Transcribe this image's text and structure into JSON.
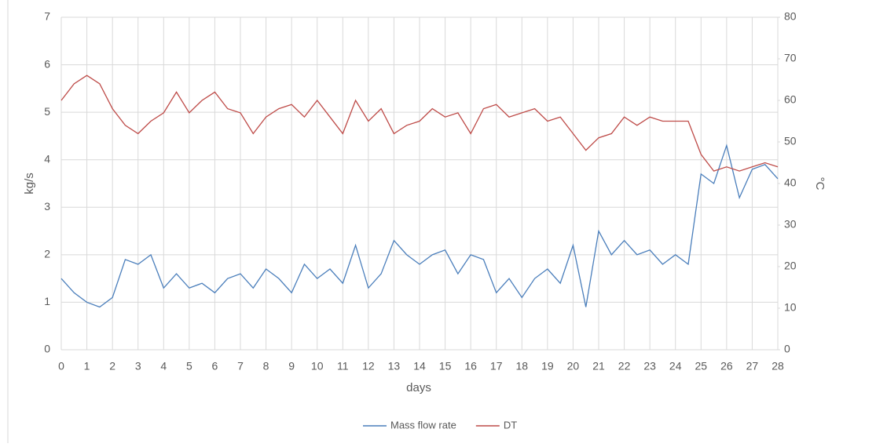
{
  "chart_data": {
    "type": "line",
    "x_label": "days",
    "y_label": "kg/s",
    "y2_label": "°C",
    "x": [
      0,
      0.5,
      1,
      1.5,
      2,
      2.5,
      3,
      3.5,
      4,
      4.5,
      5,
      5.5,
      6,
      6.5,
      7,
      7.5,
      8,
      8.5,
      9,
      9.5,
      10,
      10.5,
      11,
      11.5,
      12,
      12.5,
      13,
      13.5,
      14,
      14.5,
      15,
      15.5,
      16,
      16.5,
      17,
      17.5,
      18,
      18.5,
      19,
      19.5,
      20,
      20.5,
      21,
      21.5,
      22,
      22.5,
      23,
      23.5,
      24,
      24.5,
      25,
      25.5,
      26,
      26.5,
      27,
      27.5,
      28
    ],
    "series": [
      {
        "name": "Mass flow rate",
        "color": "#4a7ebb",
        "axis": "y",
        "values": [
          1.5,
          1.2,
          1.0,
          0.9,
          1.1,
          1.9,
          1.8,
          2.0,
          1.3,
          1.6,
          1.3,
          1.4,
          1.2,
          1.5,
          1.6,
          1.3,
          1.7,
          1.5,
          1.2,
          1.8,
          1.5,
          1.7,
          1.4,
          2.2,
          1.3,
          1.6,
          2.3,
          2.0,
          1.8,
          2.0,
          2.1,
          1.6,
          2.0,
          1.9,
          1.2,
          1.5,
          1.1,
          1.5,
          1.7,
          1.4,
          2.2,
          0.9,
          2.5,
          2.0,
          2.3,
          2.0,
          2.1,
          1.8,
          2.0,
          1.8,
          3.7,
          3.5,
          4.3,
          3.2,
          3.8,
          3.9,
          3.6
        ]
      },
      {
        "name": "DT",
        "color": "#be4b48",
        "axis": "y2",
        "values": [
          60,
          64,
          66,
          64,
          58,
          54,
          52,
          55,
          57,
          62,
          57,
          60,
          62,
          58,
          57,
          52,
          56,
          58,
          59,
          56,
          60,
          56,
          52,
          60,
          55,
          58,
          52,
          54,
          55,
          58,
          56,
          57,
          52,
          58,
          59,
          56,
          57,
          58,
          55,
          56,
          52,
          48,
          51,
          52,
          56,
          54,
          56,
          55,
          55,
          55,
          47,
          43,
          44,
          43,
          44,
          45,
          44
        ]
      }
    ],
    "xlim": [
      0,
      28
    ],
    "xticks": [
      0,
      1,
      2,
      3,
      4,
      5,
      6,
      7,
      8,
      9,
      10,
      11,
      12,
      13,
      14,
      15,
      16,
      17,
      18,
      19,
      20,
      21,
      22,
      23,
      24,
      25,
      26,
      27,
      28
    ],
    "ylim": [
      0,
      7
    ],
    "yticks": [
      0,
      1,
      2,
      3,
      4,
      5,
      6,
      7
    ],
    "y2lim": [
      0,
      80
    ],
    "y2ticks": [
      0,
      10,
      20,
      30,
      40,
      50,
      60,
      70,
      80
    ],
    "grid": true,
    "legend": "bottom"
  }
}
